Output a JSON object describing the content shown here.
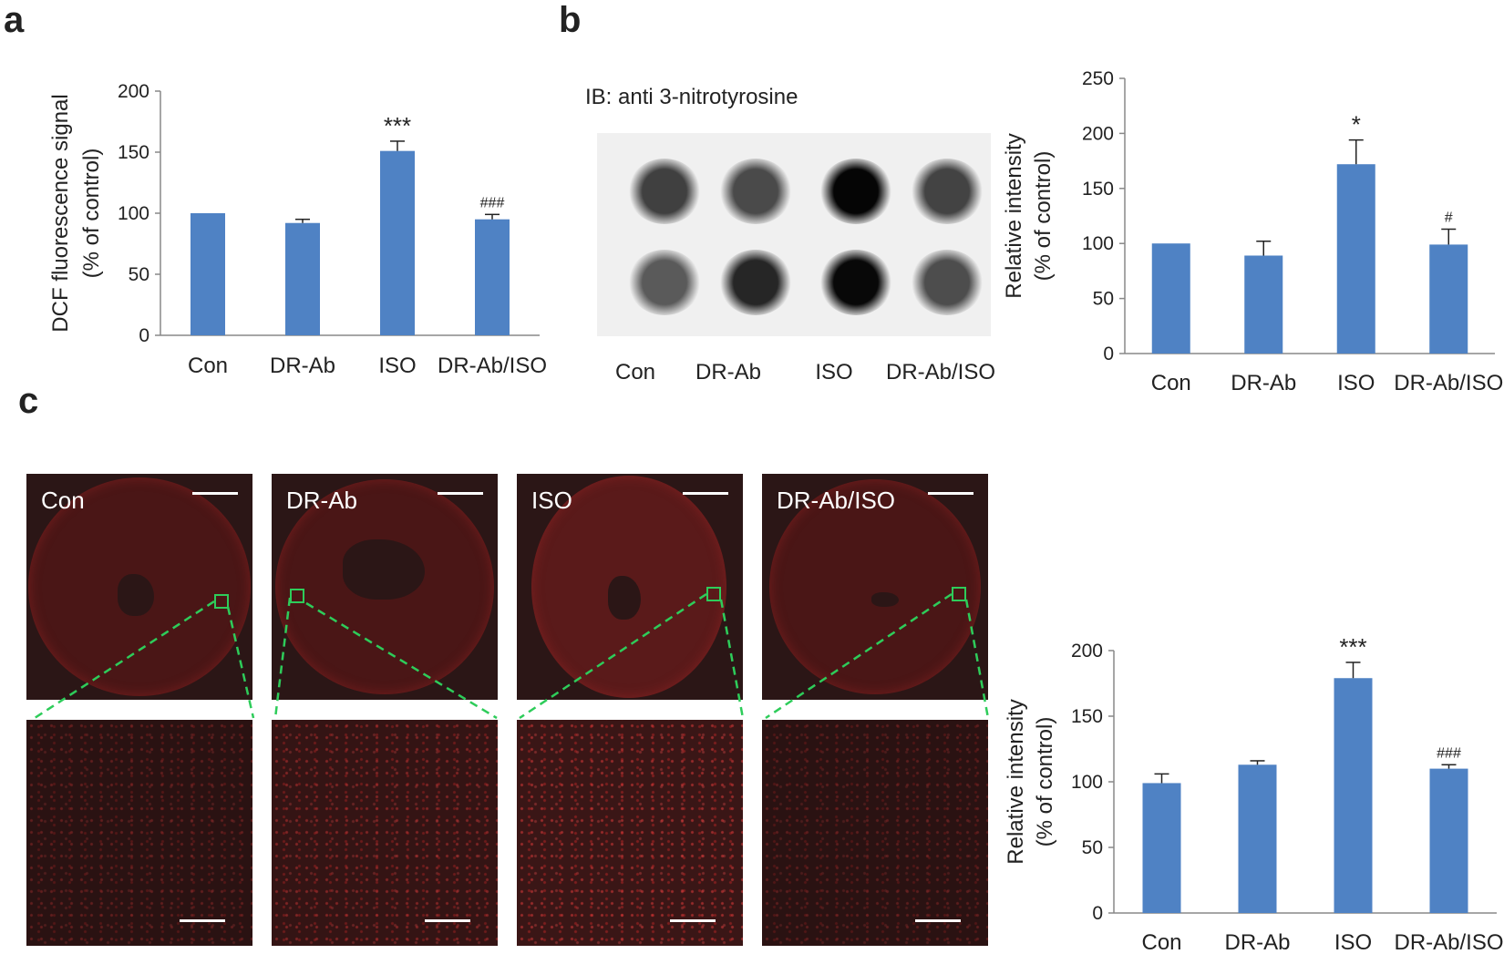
{
  "panels": {
    "a": "a",
    "b": "b",
    "c": "c"
  },
  "blot": {
    "title": "IB: anti 3-nitrotyrosine",
    "lanes": [
      "Con",
      "DR-Ab",
      "ISO",
      "DR-Ab/ISO"
    ],
    "spot_colors": {
      "row1": [
        "#404040",
        "#4a4a4a",
        "#050505",
        "#434343"
      ],
      "row2": [
        "#5a5a5a",
        "#262626",
        "#080808",
        "#4d4d4d"
      ]
    }
  },
  "micrographs": {
    "labels": [
      "Con",
      "DR-Ab",
      "ISO",
      "DR-Ab/ISO"
    ],
    "magnified_note": "Con"
  },
  "bar_color": "#4f82c4",
  "chart_data": [
    {
      "type": "bar",
      "panel": "a",
      "categories": [
        "Con",
        "DR-Ab",
        "ISO",
        "DR-Ab/ISO"
      ],
      "values": [
        100,
        92,
        151,
        95
      ],
      "errors": [
        0,
        3,
        8,
        4
      ],
      "annotations": [
        "",
        "",
        "***",
        "###"
      ],
      "ylabel_line1": "DCF fluorescence signal",
      "ylabel_line2": "(% of control)",
      "ylim": [
        0,
        200
      ],
      "yticks": [
        0,
        50,
        100,
        150,
        200
      ],
      "grid": false,
      "legend": "none"
    },
    {
      "type": "bar",
      "panel": "b",
      "categories": [
        "Con",
        "DR-Ab",
        "ISO",
        "DR-Ab/ISO"
      ],
      "values": [
        100,
        89,
        172,
        99
      ],
      "errors": [
        0,
        13,
        22,
        14
      ],
      "annotations": [
        "",
        "",
        "*",
        "#"
      ],
      "ylabel_line1": "Relative intensity",
      "ylabel_line2": "(% of control)",
      "ylim": [
        0,
        250
      ],
      "yticks": [
        0,
        50,
        100,
        150,
        200,
        250
      ],
      "grid": false,
      "legend": "none"
    },
    {
      "type": "bar",
      "panel": "c",
      "categories": [
        "Con",
        "DR-Ab",
        "ISO",
        "DR-Ab/ISO"
      ],
      "values": [
        99,
        113,
        179,
        110
      ],
      "errors": [
        7,
        3,
        12,
        3
      ],
      "annotations": [
        "",
        "",
        "***",
        "###"
      ],
      "ylabel_line1": "Relative intensity",
      "ylabel_line2": "(% of control)",
      "ylim": [
        0,
        200
      ],
      "yticks": [
        0,
        50,
        100,
        150,
        200
      ],
      "grid": false,
      "legend": "none"
    }
  ]
}
